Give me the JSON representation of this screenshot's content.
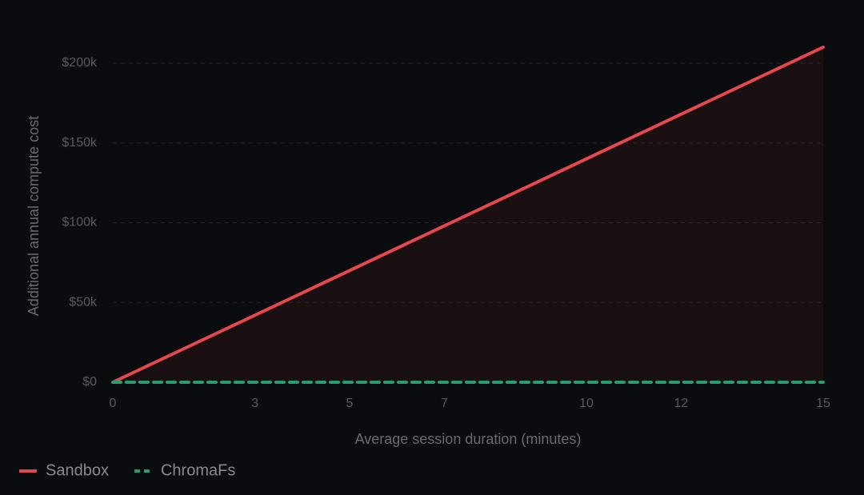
{
  "chart_data": {
    "type": "line",
    "x_label": "Average session duration (minutes)",
    "y_label": "Additional annual compute cost",
    "x": [
      0,
      15
    ],
    "series": [
      {
        "name": "Sandbox",
        "color": "#e5484d",
        "line_style": "solid",
        "area": true,
        "values": [
          0,
          210000
        ]
      },
      {
        "name": "ChromaFs",
        "color": "#2a9d6f",
        "line_style": "dashed",
        "area": false,
        "values": [
          0,
          0
        ]
      }
    ],
    "xlim": [
      0,
      15
    ],
    "xticks": [
      0,
      3,
      5,
      7,
      10,
      12,
      15
    ],
    "ylim": [
      0,
      210000
    ],
    "yticks": [
      {
        "value": 0,
        "label": "$0"
      },
      {
        "value": 50000,
        "label": "$50k"
      },
      {
        "value": 100000,
        "label": "$100k"
      },
      {
        "value": 150000,
        "label": "$150k"
      },
      {
        "value": 200000,
        "label": "$200k"
      }
    ],
    "grid": true,
    "legend": "bottom-left"
  }
}
